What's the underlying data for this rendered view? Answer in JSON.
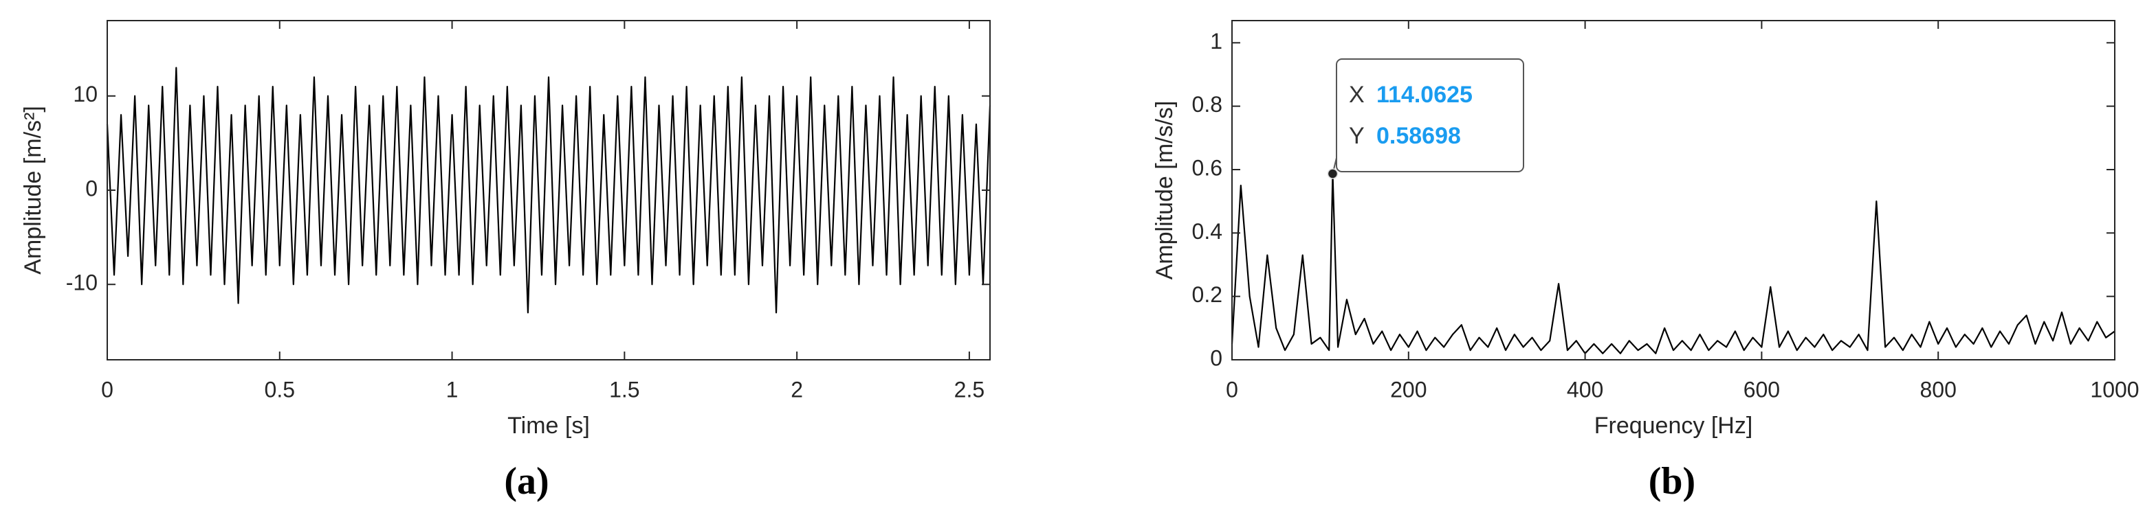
{
  "chart_data": [
    {
      "type": "line",
      "caption": "(a)",
      "xlabel": "Time [s]",
      "ylabel": "Amplitude [m/s²]",
      "color": "#000000",
      "xlim": [
        0,
        2.56
      ],
      "ylim": [
        -18,
        18
      ],
      "xticks": [
        0,
        0.5,
        1,
        1.5,
        2,
        2.5
      ],
      "yticks": [
        -10,
        0,
        10
      ],
      "x": [
        0,
        0.02,
        0.04,
        0.06,
        0.08,
        0.1,
        0.12,
        0.14,
        0.16,
        0.18,
        0.2,
        0.22,
        0.24,
        0.26,
        0.28,
        0.3,
        0.32,
        0.34,
        0.36,
        0.38,
        0.4,
        0.42,
        0.44,
        0.46,
        0.48,
        0.5,
        0.52,
        0.54,
        0.56,
        0.58,
        0.6,
        0.62,
        0.64,
        0.66,
        0.68,
        0.7,
        0.72,
        0.74,
        0.76,
        0.78,
        0.8,
        0.82,
        0.84,
        0.86,
        0.88,
        0.9,
        0.92,
        0.94,
        0.96,
        0.98,
        1,
        1.02,
        1.04,
        1.06,
        1.08,
        1.1,
        1.12,
        1.14,
        1.16,
        1.18,
        1.2,
        1.22,
        1.24,
        1.26,
        1.28,
        1.3,
        1.32,
        1.34,
        1.36,
        1.38,
        1.4,
        1.42,
        1.44,
        1.46,
        1.48,
        1.5,
        1.52,
        1.54,
        1.56,
        1.58,
        1.6,
        1.62,
        1.64,
        1.66,
        1.68,
        1.7,
        1.72,
        1.74,
        1.76,
        1.78,
        1.8,
        1.82,
        1.84,
        1.86,
        1.88,
        1.9,
        1.92,
        1.94,
        1.96,
        1.98,
        2,
        2.02,
        2.04,
        2.06,
        2.08,
        2.1,
        2.12,
        2.14,
        2.16,
        2.18,
        2.2,
        2.22,
        2.24,
        2.26,
        2.28,
        2.3,
        2.32,
        2.34,
        2.36,
        2.38,
        2.4,
        2.42,
        2.44,
        2.46,
        2.48,
        2.5,
        2.52,
        2.54,
        2.56
      ],
      "values": [
        7,
        -9,
        8,
        -7,
        10,
        -10,
        9,
        -8,
        11,
        -9,
        13,
        -10,
        9,
        -8,
        10,
        -9,
        11,
        -10,
        8,
        -12,
        9,
        -8,
        10,
        -9,
        11,
        -8,
        9,
        -10,
        8,
        -9,
        12,
        -8,
        10,
        -9,
        8,
        -10,
        11,
        -8,
        9,
        -9,
        10,
        -8,
        11,
        -9,
        9,
        -10,
        12,
        -8,
        10,
        -9,
        8,
        -9,
        11,
        -10,
        9,
        -8,
        10,
        -9,
        11,
        -8,
        9,
        -13,
        10,
        -9,
        12,
        -10,
        9,
        -8,
        10,
        -9,
        11,
        -10,
        8,
        -9,
        10,
        -8,
        11,
        -9,
        12,
        -10,
        9,
        -8,
        10,
        -9,
        11,
        -10,
        9,
        -8,
        10,
        -9,
        11,
        -9,
        12,
        -10,
        9,
        -8,
        10,
        -13,
        11,
        -8,
        10,
        -9,
        12,
        -10,
        9,
        -8,
        10,
        -9,
        11,
        -10,
        9,
        -8,
        10,
        -9,
        12,
        -10,
        8,
        -9,
        10,
        -8,
        11,
        -9,
        10,
        -10,
        8,
        -9,
        7,
        -10,
        9
      ]
    },
    {
      "type": "line",
      "caption": "(b)",
      "xlabel": "Frequency [Hz]",
      "ylabel": "Amplitude [m/s/s]",
      "color": "#000000",
      "xlim": [
        0,
        1000
      ],
      "ylim": [
        0,
        1.07
      ],
      "xticks": [
        0,
        200,
        400,
        600,
        800,
        1000
      ],
      "yticks": [
        0,
        0.2,
        0.4,
        0.6,
        0.8,
        1
      ],
      "x": [
        0,
        10,
        20,
        30,
        40,
        50,
        60,
        70,
        80,
        90,
        100,
        110,
        114.0625,
        120,
        130,
        140,
        150,
        160,
        170,
        180,
        190,
        200,
        210,
        220,
        230,
        240,
        250,
        260,
        270,
        280,
        290,
        300,
        310,
        320,
        330,
        340,
        350,
        360,
        370,
        380,
        390,
        400,
        410,
        420,
        430,
        440,
        450,
        460,
        470,
        480,
        490,
        500,
        510,
        520,
        530,
        540,
        550,
        560,
        570,
        580,
        590,
        600,
        610,
        620,
        630,
        640,
        650,
        660,
        670,
        680,
        690,
        700,
        710,
        720,
        730,
        740,
        750,
        760,
        770,
        780,
        790,
        800,
        810,
        820,
        830,
        840,
        850,
        860,
        870,
        880,
        890,
        900,
        910,
        920,
        930,
        940,
        950,
        960,
        970,
        980,
        990,
        1000
      ],
      "values": [
        0.05,
        0.55,
        0.2,
        0.04,
        0.33,
        0.1,
        0.03,
        0.08,
        0.33,
        0.05,
        0.07,
        0.03,
        0.58698,
        0.04,
        0.19,
        0.08,
        0.13,
        0.05,
        0.09,
        0.03,
        0.08,
        0.04,
        0.09,
        0.03,
        0.07,
        0.04,
        0.08,
        0.11,
        0.03,
        0.07,
        0.04,
        0.1,
        0.03,
        0.08,
        0.04,
        0.07,
        0.03,
        0.06,
        0.24,
        0.03,
        0.06,
        0.02,
        0.05,
        0.02,
        0.05,
        0.02,
        0.06,
        0.03,
        0.05,
        0.02,
        0.1,
        0.03,
        0.06,
        0.03,
        0.08,
        0.03,
        0.06,
        0.04,
        0.09,
        0.03,
        0.07,
        0.04,
        0.23,
        0.04,
        0.09,
        0.03,
        0.07,
        0.04,
        0.08,
        0.03,
        0.06,
        0.04,
        0.08,
        0.03,
        0.5,
        0.04,
        0.07,
        0.03,
        0.08,
        0.04,
        0.12,
        0.05,
        0.1,
        0.04,
        0.08,
        0.05,
        0.1,
        0.04,
        0.09,
        0.05,
        0.11,
        0.14,
        0.05,
        0.12,
        0.06,
        0.15,
        0.05,
        0.1,
        0.06,
        0.12,
        0.07,
        0.09
      ],
      "datatip": {
        "x_label": "X",
        "x": 114.0625,
        "y_label": "Y",
        "y": 0.58698
      }
    }
  ]
}
